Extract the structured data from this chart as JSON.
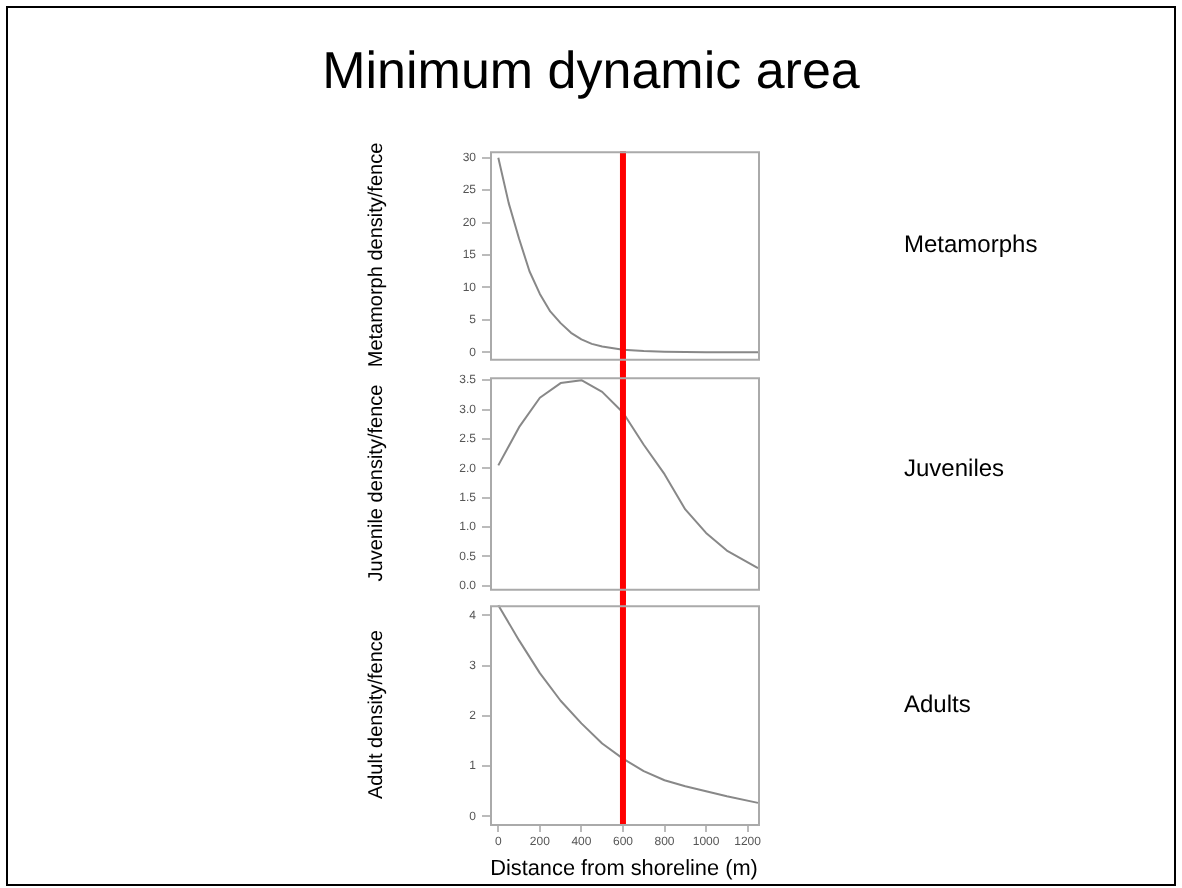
{
  "chart_data": [
    {
      "type": "line",
      "title": "Minimum dynamic area",
      "ylabel": "Metamorph density/fence",
      "annotations": [
        "Metamorphs"
      ],
      "tick_labels": "y",
      "grid": false,
      "legend": false,
      "marker": "none",
      "line_style": "solid",
      "x": [
        0,
        50,
        100,
        150,
        200,
        250,
        300,
        350,
        400,
        450,
        500,
        600,
        700,
        800,
        1000,
        1250
      ],
      "series": [
        {
          "color": "#888888",
          "values": [
            30,
            23,
            17.5,
            12.5,
            9,
            6.3,
            4.5,
            3,
            2,
            1.3,
            0.9,
            0.4,
            0.2,
            0.1,
            0,
            0
          ]
        }
      ],
      "xlim": [
        -40,
        1250
      ],
      "ylim": [
        -1,
        31
      ],
      "yticks": [
        0,
        5,
        10,
        15,
        20,
        25,
        30
      ],
      "ref_lines": [
        {
          "axis": "x",
          "value": 600,
          "color": "#ff0000"
        }
      ]
    },
    {
      "type": "line",
      "ylabel": "Juvenile density/fence",
      "annotations": [
        "Juveniles"
      ],
      "tick_labels": "y",
      "grid": false,
      "legend": false,
      "marker": "none",
      "line_style": "solid",
      "x": [
        0,
        100,
        200,
        300,
        400,
        500,
        600,
        700,
        800,
        900,
        1000,
        1100,
        1250
      ],
      "series": [
        {
          "color": "#888888",
          "values": [
            2.05,
            2.7,
            3.2,
            3.45,
            3.5,
            3.3,
            2.95,
            2.4,
            1.9,
            1.3,
            0.9,
            0.6,
            0.3
          ]
        }
      ],
      "xlim": [
        -40,
        1250
      ],
      "ylim": [
        -0.05,
        3.55
      ],
      "yticks": [
        {
          "value": 0,
          "label": "0.0"
        },
        0.5,
        {
          "value": 1,
          "label": "1.0"
        },
        1.5,
        {
          "value": 2,
          "label": "2.0"
        },
        2.5,
        {
          "value": 3,
          "label": "3.0"
        },
        3.5
      ],
      "ref_lines": [
        {
          "axis": "x",
          "value": 600,
          "color": "#ff0000"
        }
      ]
    },
    {
      "type": "line",
      "xlabel": "Distance from shoreline (m)",
      "ylabel": "Adult density/fence",
      "annotations": [
        "Adults"
      ],
      "grid": false,
      "legend": false,
      "marker": "none",
      "line_style": "solid",
      "x": [
        0,
        100,
        200,
        300,
        400,
        500,
        600,
        700,
        800,
        900,
        1000,
        1100,
        1250
      ],
      "series": [
        {
          "color": "#888888",
          "values": [
            4.2,
            3.5,
            2.85,
            2.3,
            1.85,
            1.45,
            1.15,
            0.9,
            0.72,
            0.6,
            0.5,
            0.4,
            0.27
          ]
        }
      ],
      "xlim": [
        -40,
        1250
      ],
      "xticks": [
        0,
        200,
        400,
        600,
        800,
        1000,
        1200
      ],
      "ylim": [
        -0.15,
        4.2
      ],
      "yticks": [
        0,
        1,
        2,
        3,
        4
      ],
      "ref_lines": [
        {
          "axis": "x",
          "value": 600,
          "color": "#ff0000"
        }
      ]
    }
  ]
}
